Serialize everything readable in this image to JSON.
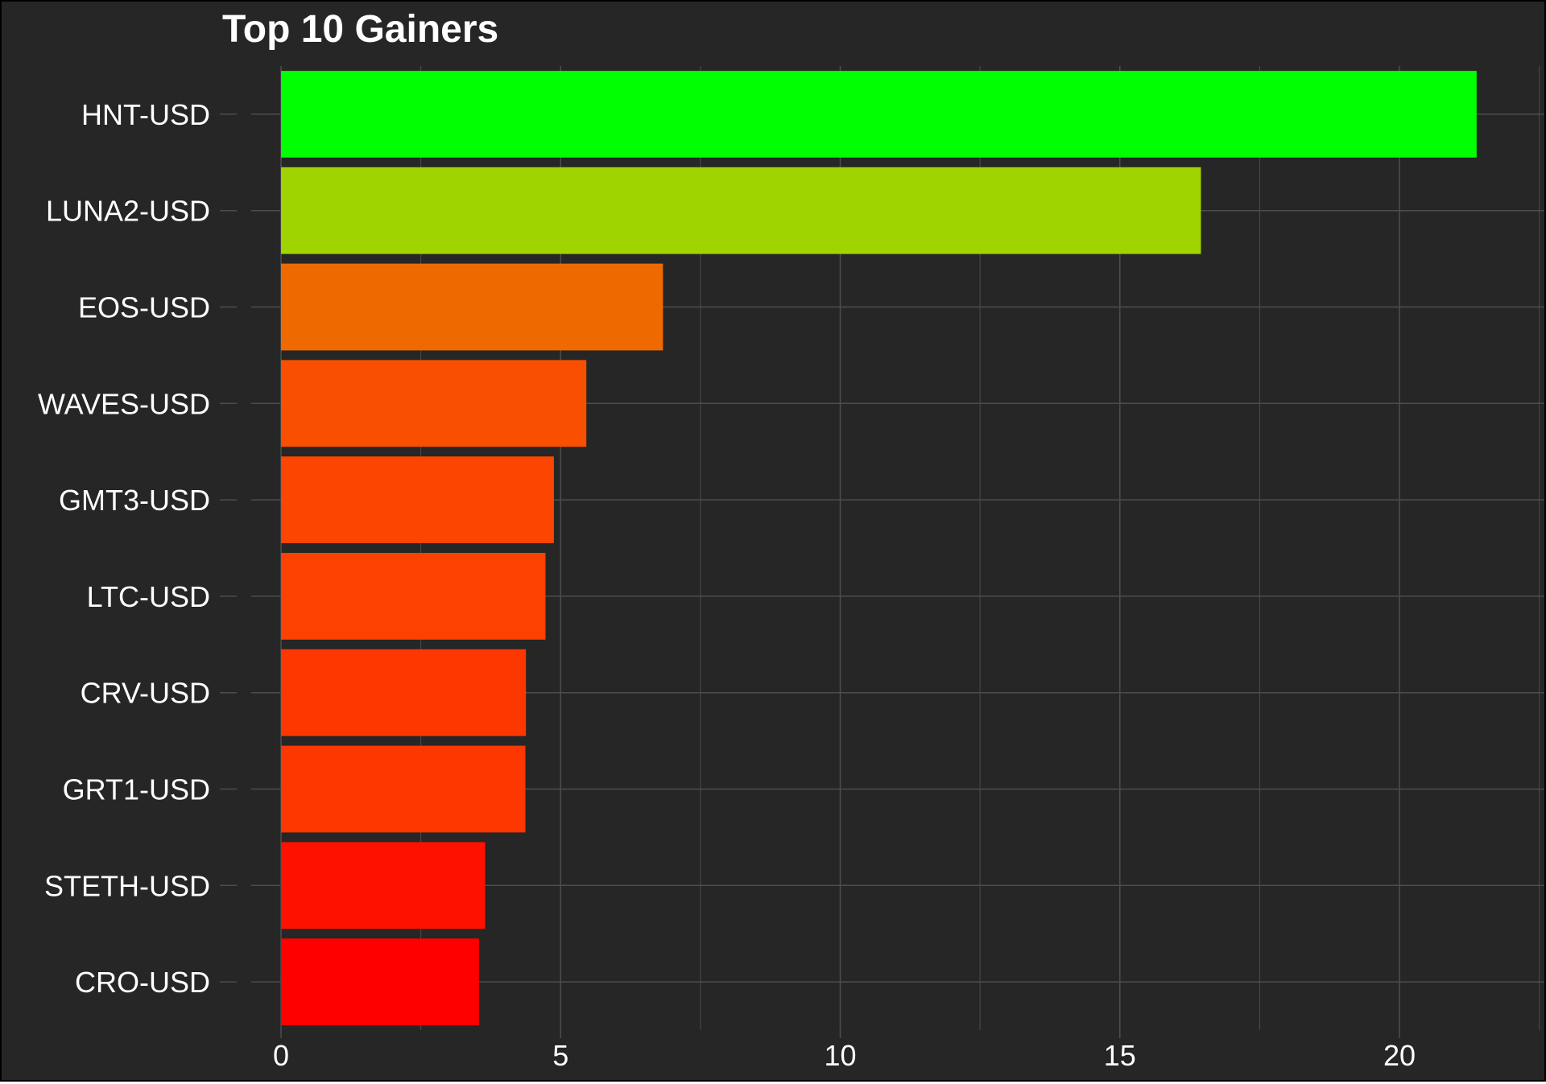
{
  "chart_data": {
    "type": "bar",
    "orientation": "horizontal",
    "title": "Top 10 Gainers",
    "xlabel": "",
    "ylabel": "",
    "categories": [
      "HNT-USD",
      "LUNA2-USD",
      "EOS-USD",
      "WAVES-USD",
      "GMT3-USD",
      "LTC-USD",
      "CRV-USD",
      "GRT1-USD",
      "STETH-USD",
      "CRO-USD"
    ],
    "values": [
      21.38,
      16.45,
      6.83,
      5.46,
      4.88,
      4.73,
      4.38,
      4.37,
      3.65,
      3.54
    ],
    "bar_colors": [
      "#00ff00",
      "#a0d400",
      "#ee6a00",
      "#f84f00",
      "#fb4500",
      "#fc4100",
      "#fd3700",
      "#fd3700",
      "#ff1100",
      "#ff0000"
    ],
    "xlim": [
      0,
      22.5
    ],
    "xticks": [
      0,
      5,
      10,
      15,
      20
    ],
    "xtick_labels": [
      "0",
      "5",
      "10",
      "15",
      "20"
    ],
    "grid": true,
    "legend": "none",
    "colors": {
      "background": "#262626",
      "grid": "#4d4d4d",
      "text": "#ffffff"
    }
  }
}
